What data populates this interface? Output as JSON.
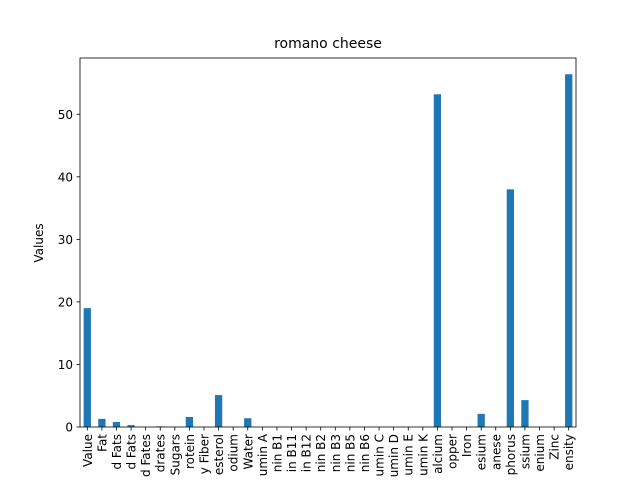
{
  "chart_data": {
    "type": "bar",
    "title": "romano cheese",
    "xlabel": "",
    "ylabel": "Values",
    "ylim": [
      0,
      59
    ],
    "yticks": [
      0,
      10,
      20,
      30,
      40,
      50
    ],
    "grid": false,
    "legend": "none",
    "bar_color": "#1f77b4",
    "categories": [
      "Value",
      "Fat",
      "d Fats",
      "d Fats",
      "d Fates",
      "drates",
      "Sugars",
      "rotein",
      "y Fiber",
      "esterol",
      "odium",
      "Water",
      "umin A",
      "nin B1",
      "in B11",
      "in B12",
      "nin B2",
      "nin B3",
      "nin B5",
      "nin B6",
      "umin C",
      "umin D",
      "umin E",
      "umin K",
      "alcium",
      "opper",
      "Iron",
      "esium",
      "anese",
      "phorus",
      "ssium",
      "enium",
      "Zinc",
      "ensity"
    ],
    "values": [
      19.0,
      1.3,
      0.8,
      0.3,
      0.0,
      0.1,
      0.0,
      1.6,
      0.0,
      5.1,
      0.0,
      1.4,
      0.0,
      0.0,
      0.0,
      0.0,
      0.0,
      0.0,
      0.0,
      0.0,
      0.0,
      0.0,
      0.0,
      0.0,
      53.2,
      0.0,
      0.0,
      2.1,
      0.0,
      38.0,
      4.3,
      0.0,
      0.0,
      56.4
    ]
  }
}
